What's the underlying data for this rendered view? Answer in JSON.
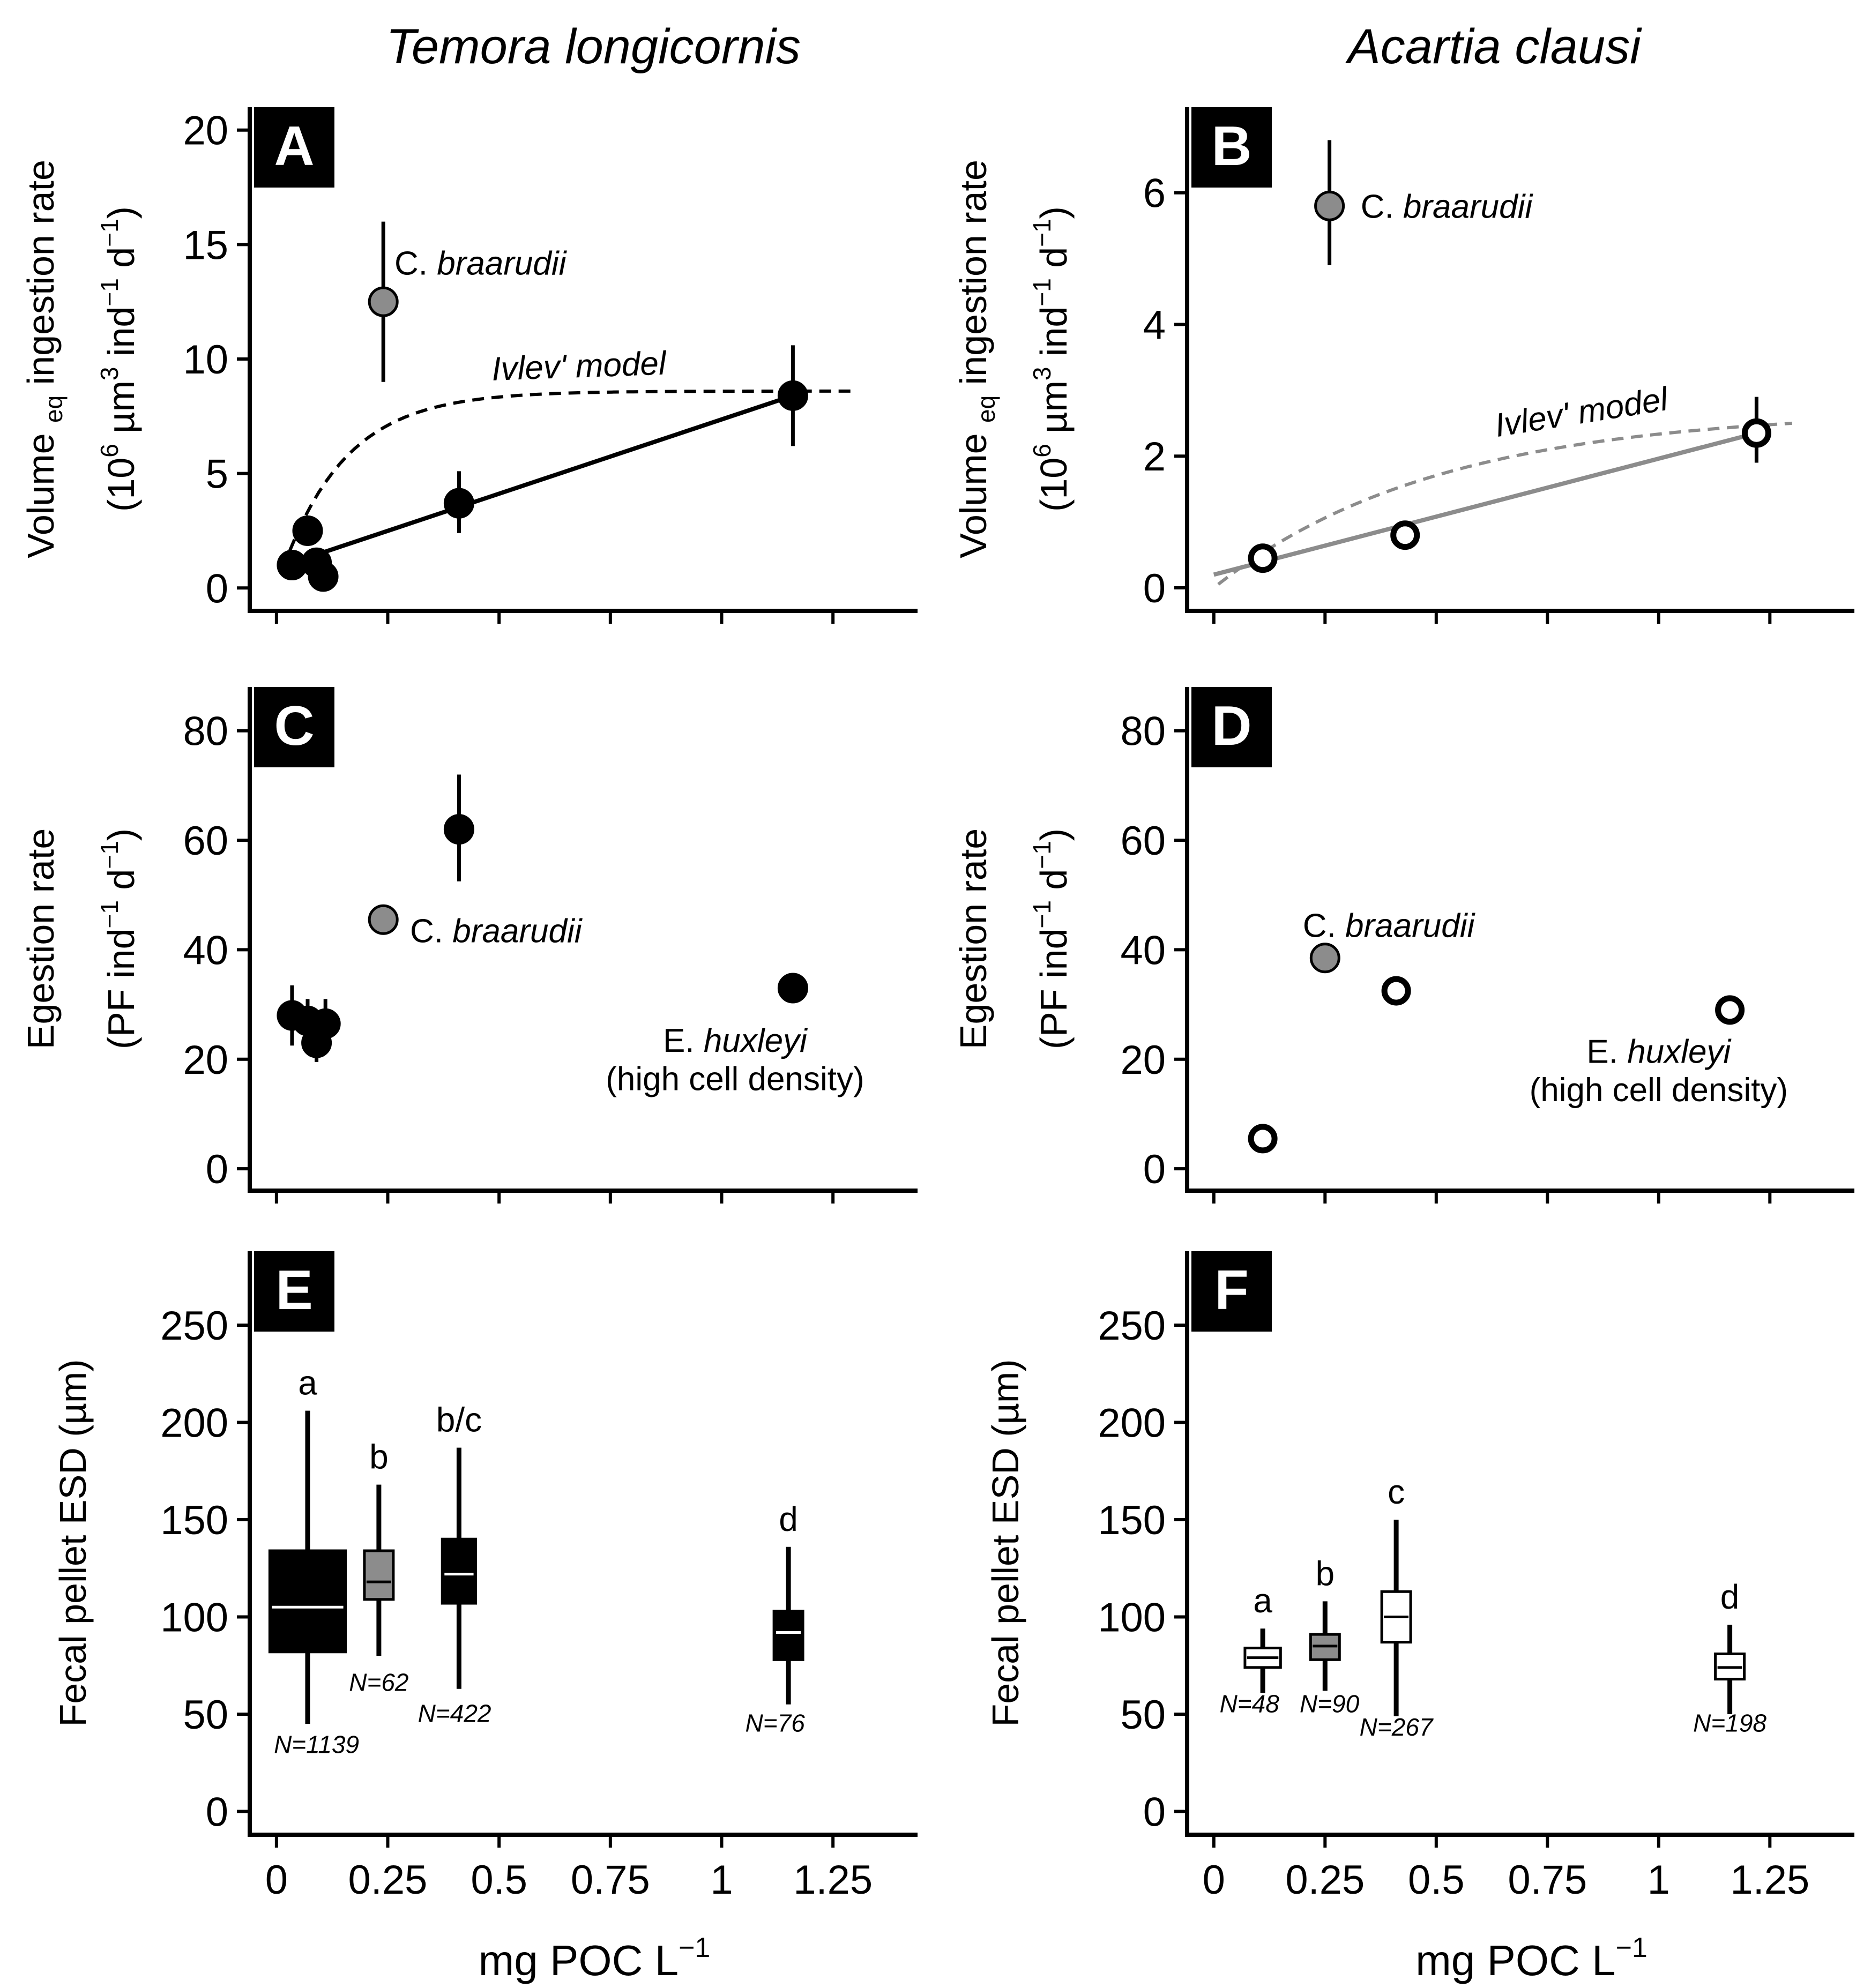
{
  "figure": {
    "col_titles": [
      "Temora longicornis",
      "Acartia clausi"
    ],
    "xlabel_main": "mg POC L",
    "xlabel_sup": "−1",
    "x_tick_labels": [
      "0",
      "0.25",
      "0.5",
      "0.75",
      "1",
      "1.25"
    ]
  },
  "chart_data": [
    {
      "panel": "A",
      "type": "scatter",
      "species": "Temora longicornis",
      "ylabel": [
        "Volume eq ingestion rate",
        "(10^6 µm^3 ind^-1 d^-1)"
      ],
      "ylabel_parts": {
        "l1a": "Volume ",
        "l1sub": "eq",
        "l1b": " ingestion rate",
        "l2a": "(10",
        "l2s1": "6",
        "l2b": " µm",
        "l2s2": "3",
        "l2c": " ind",
        "l2s3": "−1",
        "l2d": " d",
        "l2s4": "−1",
        "l2e": ")"
      },
      "xlim": [
        -0.06,
        1.44
      ],
      "ylim": [
        -1,
        21
      ],
      "y_ticks": [
        0,
        5,
        10,
        15,
        20
      ],
      "y_tick_labels": [
        "0",
        "5",
        "10",
        "15",
        "20"
      ],
      "points": [
        {
          "x": 0.035,
          "y": 1.0,
          "fill": "#000000"
        },
        {
          "x": 0.07,
          "y": 2.5,
          "fill": "#000000"
        },
        {
          "x": 0.09,
          "y": 1.1,
          "fill": "#000000"
        },
        {
          "x": 0.105,
          "y": 0.5,
          "fill": "#000000"
        },
        {
          "x": 0.41,
          "y": 3.7,
          "err": [
            2.4,
            5.1
          ],
          "fill": "#000000"
        },
        {
          "x": 1.16,
          "y": 8.4,
          "err": [
            6.2,
            10.6
          ],
          "fill": "#000000"
        },
        {
          "x": 0.24,
          "y": 12.5,
          "err": [
            9.0,
            16.0
          ],
          "fill": "#8c8c8c"
        }
      ],
      "regression": {
        "x": [
          0.035,
          1.16
        ],
        "y": [
          1.1,
          8.4
        ],
        "color": "#000000"
      },
      "model": {
        "type": "ivlev",
        "ymax": 8.6,
        "k": 7.0,
        "x0": 0.0,
        "xrange": [
          0.015,
          1.3
        ],
        "color": "#000000",
        "label": "Ivlev' model",
        "label_x": 0.68,
        "label_y": 9.2,
        "label_angle": -2
      },
      "annotations": [
        {
          "text_plain": "C. ",
          "text_italic": "braarudii",
          "x": 0.265,
          "y": 14.2
        }
      ]
    },
    {
      "panel": "B",
      "type": "scatter",
      "species": "Acartia clausi",
      "ylabel_parts": {
        "l1a": "Volume ",
        "l1sub": "eq",
        "l1b": " ingestion rate",
        "l2a": "(10",
        "l2s1": "6",
        "l2b": " µm",
        "l2s2": "3",
        "l2c": " ind",
        "l2s3": "−1",
        "l2d": " d",
        "l2s4": "−1",
        "l2e": ")"
      },
      "xlim": [
        -0.06,
        1.44
      ],
      "ylim": [
        -0.35,
        7.3
      ],
      "y_ticks": [
        0,
        2,
        4,
        6
      ],
      "y_tick_labels": [
        "0",
        "2",
        "4",
        "6"
      ],
      "points": [
        {
          "x": 0.11,
          "y": 0.45,
          "fill": "#ffffff"
        },
        {
          "x": 0.43,
          "y": 0.8,
          "fill": "#ffffff"
        },
        {
          "x": 1.22,
          "y": 2.35,
          "err": [
            1.9,
            2.9
          ],
          "fill": "#ffffff"
        },
        {
          "x": 0.26,
          "y": 5.8,
          "err": [
            4.9,
            6.8
          ],
          "fill": "#8c8c8c"
        }
      ],
      "regression": {
        "x": [
          0.0,
          1.22
        ],
        "y": [
          0.2,
          2.35
        ],
        "color": "#8c8c8c"
      },
      "model": {
        "type": "ivlev",
        "ymax": 2.7,
        "k": 2.0,
        "x0": 0.0,
        "xrange": [
          0.01,
          1.3
        ],
        "color": "#8c8c8c",
        "label": "Ivlev' model",
        "label_x": 0.83,
        "label_y": 2.5,
        "label_angle": -9
      },
      "annotations": [
        {
          "text_plain": "C. ",
          "text_italic": "braarudii",
          "x": 0.33,
          "y": 5.8
        }
      ]
    },
    {
      "panel": "C",
      "type": "scatter",
      "species": "Temora longicornis",
      "ylabel_parts": {
        "l1a": "Egestion rate",
        "l2a": "(PF ind",
        "l2s1": "−1",
        "l2b": " d",
        "l2s2": "−1",
        "l2c": ")"
      },
      "xlim": [
        -0.06,
        1.44
      ],
      "ylim": [
        -4,
        88
      ],
      "y_ticks": [
        0,
        20,
        40,
        60,
        80
      ],
      "y_tick_labels": [
        "0",
        "20",
        "40",
        "60",
        "80"
      ],
      "points": [
        {
          "x": 0.035,
          "y": 28,
          "err": [
            22.5,
            33.5
          ],
          "fill": "#000000"
        },
        {
          "x": 0.07,
          "y": 27,
          "err": [
            22.5,
            31
          ],
          "fill": "#000000"
        },
        {
          "x": 0.09,
          "y": 23,
          "err": [
            19.5,
            27
          ],
          "fill": "#000000"
        },
        {
          "x": 0.11,
          "y": 26.5,
          "err": [
            22.5,
            31
          ],
          "fill": "#000000"
        },
        {
          "x": 0.41,
          "y": 62,
          "err": [
            52.5,
            72
          ],
          "fill": "#000000"
        },
        {
          "x": 1.16,
          "y": 33,
          "fill": "#000000"
        },
        {
          "x": 0.24,
          "y": 45.5,
          "fill": "#8c8c8c"
        }
      ],
      "annotations": [
        {
          "text_plain": "C. ",
          "text_italic": "braarudii",
          "x": 0.3,
          "y": 43.5
        },
        {
          "text_plain": "E. ",
          "text_italic": "huxleyi",
          "x": 1.03,
          "y": 23.5,
          "anchor": "middle"
        },
        {
          "text_plain": "(high cell density)",
          "text_italic": "",
          "x": 1.03,
          "y": 16.5,
          "anchor": "middle"
        }
      ]
    },
    {
      "panel": "D",
      "type": "scatter",
      "species": "Acartia clausi",
      "ylabel_parts": {
        "l1a": "Egestion rate",
        "l2a": "(PF ind",
        "l2s1": "−1",
        "l2b": " d",
        "l2s2": "−1",
        "l2c": ")"
      },
      "xlim": [
        -0.06,
        1.44
      ],
      "ylim": [
        -4,
        88
      ],
      "y_ticks": [
        0,
        20,
        40,
        60,
        80
      ],
      "y_tick_labels": [
        "0",
        "20",
        "40",
        "60",
        "80"
      ],
      "points": [
        {
          "x": 0.11,
          "y": 5.5,
          "fill": "#ffffff"
        },
        {
          "x": 0.41,
          "y": 32.5,
          "fill": "#ffffff"
        },
        {
          "x": 1.16,
          "y": 29,
          "fill": "#ffffff"
        },
        {
          "x": 0.25,
          "y": 38.5,
          "fill": "#8c8c8c"
        }
      ],
      "annotations": [
        {
          "text_plain": "C. ",
          "text_italic": "braarudii",
          "x": 0.2,
          "y": 44.5
        },
        {
          "text_plain": "E. ",
          "text_italic": "huxleyi",
          "x": 1.0,
          "y": 21.5,
          "anchor": "middle"
        },
        {
          "text_plain": "(high cell density)",
          "text_italic": "",
          "x": 1.0,
          "y": 14.5,
          "anchor": "middle"
        }
      ]
    },
    {
      "panel": "E",
      "type": "boxplot",
      "species": "Temora longicornis",
      "ylabel_parts": {
        "l1a": "Fecal pellet ESD (µm)"
      },
      "xlim": [
        -0.06,
        1.44
      ],
      "ylim": [
        -12,
        288
      ],
      "y_ticks": [
        0,
        50,
        100,
        150,
        200,
        250
      ],
      "y_tick_labels": [
        "0",
        "50",
        "100",
        "150",
        "200",
        "250"
      ],
      "boxes": [
        {
          "x": 0.07,
          "width": 0.17,
          "q1": 82,
          "median": 105,
          "q3": 134,
          "whisker_low": 45,
          "whisker_high": 206,
          "fill": "#000000",
          "line": "#000000",
          "median_color": "#ffffff",
          "letter": "a",
          "n": "N=1139",
          "n_y": 30,
          "n_x": 0.09
        },
        {
          "x": 0.23,
          "width": 0.065,
          "q1": 109,
          "median": 118,
          "q3": 134,
          "whisker_low": 80,
          "whisker_high": 168,
          "fill": "#8c8c8c",
          "line": "#000000",
          "median_color": "#000000",
          "letter": "b",
          "n": "N=62",
          "n_y": 62,
          "n_x": 0.23
        },
        {
          "x": 0.41,
          "width": 0.075,
          "q1": 107,
          "median": 122,
          "q3": 140,
          "whisker_low": 63,
          "whisker_high": 187,
          "fill": "#000000",
          "line": "#000000",
          "median_color": "#ffffff",
          "letter": "b/c",
          "n": "N=422",
          "n_y": 46,
          "n_x": 0.4
        },
        {
          "x": 1.15,
          "width": 0.065,
          "q1": 78,
          "median": 92,
          "q3": 103,
          "whisker_low": 55,
          "whisker_high": 136,
          "fill": "#000000",
          "line": "#000000",
          "median_color": "#ffffff",
          "letter": "d",
          "n": "N=76",
          "n_y": 41,
          "n_x": 1.12
        }
      ]
    },
    {
      "panel": "F",
      "type": "boxplot",
      "species": "Acartia clausi",
      "ylabel_parts": {
        "l1a": "Fecal pellet ESD (µm)"
      },
      "xlim": [
        -0.06,
        1.44
      ],
      "ylim": [
        -12,
        288
      ],
      "y_ticks": [
        0,
        50,
        100,
        150,
        200,
        250
      ],
      "y_tick_labels": [
        "0",
        "50",
        "100",
        "150",
        "200",
        "250"
      ],
      "boxes": [
        {
          "x": 0.11,
          "width": 0.08,
          "q1": 74,
          "median": 79,
          "q3": 84,
          "whisker_low": 61,
          "whisker_high": 94,
          "fill": "#ffffff",
          "line": "#000000",
          "median_color": "#000000",
          "letter": "a",
          "n": "N=48",
          "n_y": 51,
          "n_x": 0.08
        },
        {
          "x": 0.25,
          "width": 0.065,
          "q1": 78,
          "median": 85,
          "q3": 91,
          "whisker_low": 62,
          "whisker_high": 108,
          "fill": "#8c8c8c",
          "line": "#000000",
          "median_color": "#000000",
          "letter": "b",
          "n": "N=90",
          "n_y": 51,
          "n_x": 0.26
        },
        {
          "x": 0.41,
          "width": 0.065,
          "q1": 87,
          "median": 100,
          "q3": 113,
          "whisker_low": 49,
          "whisker_high": 150,
          "fill": "#ffffff",
          "line": "#000000",
          "median_color": "#000000",
          "letter": "c",
          "n": "N=267",
          "n_y": 39,
          "n_x": 0.41
        },
        {
          "x": 1.16,
          "width": 0.065,
          "q1": 68,
          "median": 74,
          "q3": 81,
          "whisker_low": 50,
          "whisker_high": 96,
          "fill": "#ffffff",
          "line": "#000000",
          "median_color": "#000000",
          "letter": "d",
          "n": "N=198",
          "n_y": 41,
          "n_x": 1.16
        }
      ]
    }
  ]
}
